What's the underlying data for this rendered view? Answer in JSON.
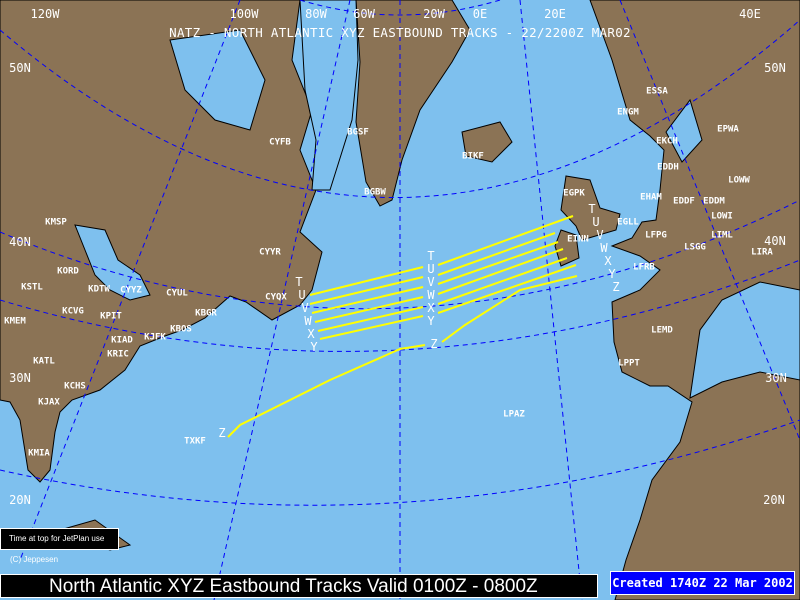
{
  "title": "NATZ - NORTH ATLANTIC XYZ EASTBOUND TRACKS - 22/2200Z MAR02",
  "footer": "North Atlantic XYZ Eastbound Tracks Valid 0100Z - 0800Z",
  "created": "Created 1740Z 22 Mar 2002",
  "note": "Time at top for JetPlan use",
  "copyright": "(C) Jeppesen",
  "colors": {
    "ocean": "#7ec0ee",
    "land": "#8b7355",
    "graticule": "#0000ff",
    "tracks": "#ffff00",
    "text": "#ffffff"
  },
  "longitude_labels": [
    "120W",
    "100W",
    "80W",
    "60W",
    "20W",
    "0E",
    "20E",
    "40E"
  ],
  "latitude_labels": [
    "50N",
    "40N",
    "30N",
    "20N"
  ],
  "tracks": {
    "letters": [
      "T",
      "U",
      "V",
      "W",
      "X",
      "Y",
      "Z"
    ]
  },
  "airports": [
    "KMSP",
    "KORD",
    "KSTL",
    "KDTW",
    "CYYZ",
    "CYUL",
    "KCVG",
    "KPIT",
    "KMEM",
    "KBGR",
    "KBOS",
    "KJFK",
    "KIAD",
    "KRIC",
    "KATL",
    "KCHS",
    "KJAX",
    "KMIA",
    "TXKF",
    "CYYR",
    "CYQX",
    "CYFB",
    "BGSF",
    "BGBW",
    "BIKF",
    "ESSA",
    "ENGM",
    "EPWA",
    "EKCH",
    "EDDH",
    "LOWW",
    "EGPK",
    "EHAM",
    "EDDF",
    "EDDM",
    "LOWI",
    "EGLL",
    "LFPG",
    "EINN",
    "LIML",
    "LSGG",
    "LIRA",
    "LFRB",
    "LEMD",
    "LPPT",
    "LPAZ"
  ]
}
